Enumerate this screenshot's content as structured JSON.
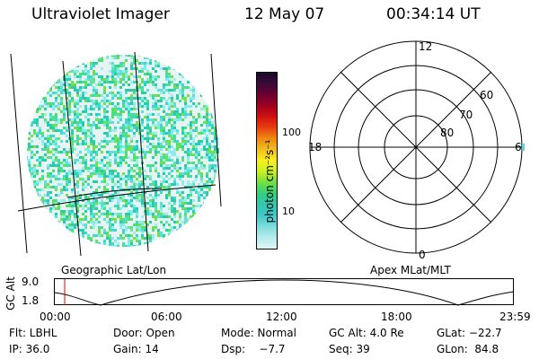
{
  "header": {
    "title": "Ultraviolet Imager",
    "date": "12 May 07",
    "time": "00:34:14 UT"
  },
  "geo_panel": {
    "label": "Geographic Lat/Lon"
  },
  "colorbar": {
    "unit_label": "photon cm⁻²s⁻¹",
    "ticks": [
      "100",
      "10"
    ],
    "colors": [
      "#1a0a2a",
      "#3a0a3a",
      "#6a0030",
      "#a00020",
      "#d01010",
      "#e84010",
      "#f08a10",
      "#f0c020",
      "#f8f020",
      "#c8f020",
      "#70e040",
      "#30d080",
      "#30c8b0",
      "#40c8c8",
      "#80dcdc",
      "#b8ecec",
      "#e0f4f4"
    ]
  },
  "polar_panel": {
    "label": "Apex MLat/MLT",
    "mlt_labels": {
      "top": "12",
      "left": "18",
      "right": "6",
      "bottom": "0"
    },
    "lat_labels": [
      "60",
      "70",
      "80"
    ]
  },
  "timeline": {
    "ylabel": "GC Alt",
    "ymax": "9.0",
    "ymin": "1.8",
    "ticks": [
      "00:00",
      "06:00",
      "12:00",
      "18:00",
      "23:59"
    ]
  },
  "info": {
    "row1": [
      "Flt: LBHL",
      "Door: Open",
      "Mode: Normal",
      "GC Alt: 4.0 Re",
      "GLat: −22.7"
    ],
    "row2": [
      "IP: 36.0",
      "Gain: 14",
      "Dsp:    −7.7",
      "Seq: 39",
      "GLon:  84.8"
    ]
  },
  "colors": {
    "accent_marker": "#e00000"
  }
}
